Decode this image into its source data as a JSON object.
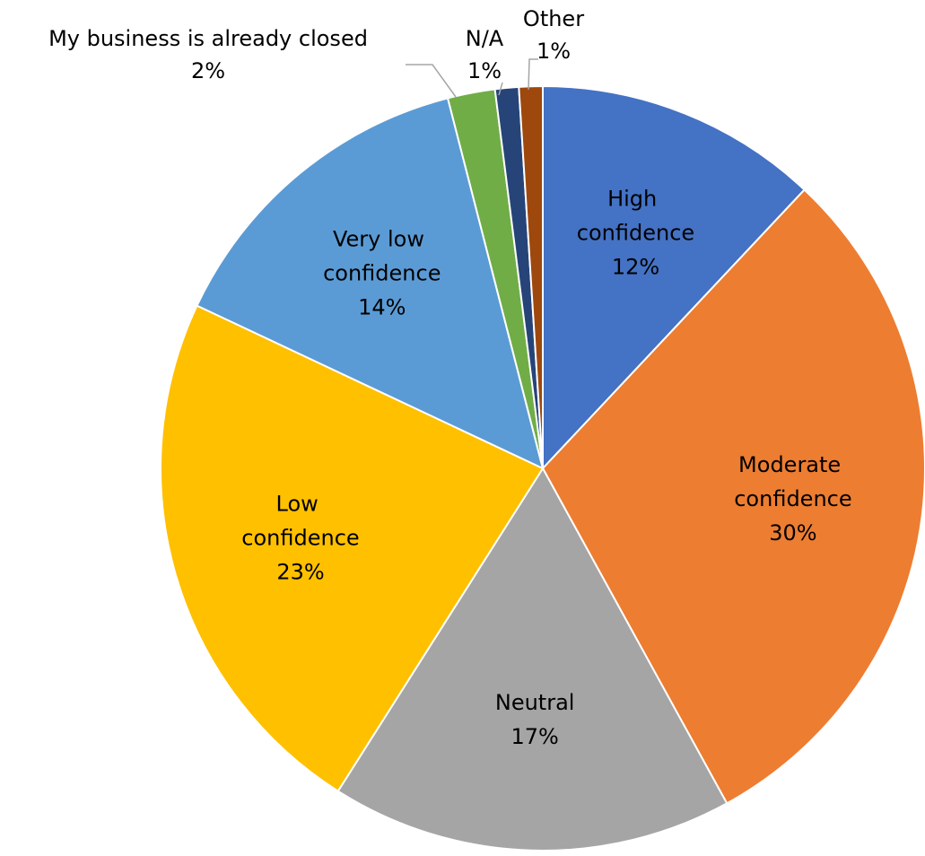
{
  "chart_data": {
    "type": "pie",
    "categories": [
      "High confidence",
      "Moderate confidence",
      "Neutral",
      "Low confidence",
      "Very low confidence",
      "My business is already closed",
      "N/A",
      "Other"
    ],
    "values": [
      12,
      30,
      17,
      23,
      14,
      2,
      1,
      1
    ],
    "value_labels": [
      "12%",
      "30%",
      "17%",
      "23%",
      "14%",
      "2%",
      "1%",
      "1%"
    ],
    "colors": [
      "#4472c4",
      "#ed7d31",
      "#a5a5a5",
      "#ffc000",
      "#5b9bd5",
      "#70ad47",
      "#264478",
      "#9e480e"
    ]
  }
}
